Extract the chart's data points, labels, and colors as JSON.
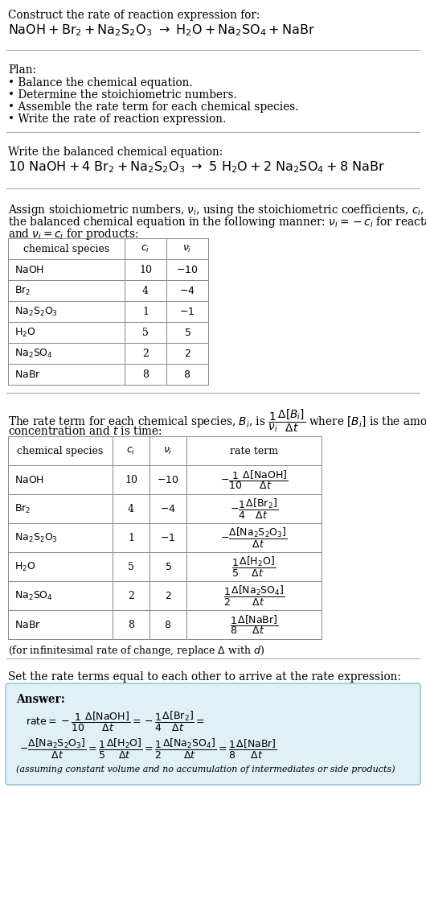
{
  "bg_color": "#ffffff",
  "text_color": "#000000",
  "title_line1": "Construct the rate of reaction expression for:",
  "plan_header": "Plan:",
  "plan_items": [
    "• Balance the chemical equation.",
    "• Determine the stoichiometric numbers.",
    "• Assemble the rate term for each chemical species.",
    "• Write the rate of reaction expression."
  ],
  "balanced_header": "Write the balanced chemical equation:",
  "table1_rows": [
    [
      "NaOH",
      "10",
      "−10"
    ],
    [
      "Br_2",
      "4",
      "−4"
    ],
    [
      "Na_2S_2O_3",
      "1",
      "−1"
    ],
    [
      "H_2O",
      "5",
      "5"
    ],
    [
      "Na_2SO_4",
      "2",
      "2"
    ],
    [
      "NaBr",
      "8",
      "8"
    ]
  ],
  "table2_rows": [
    [
      "NaOH",
      "10",
      "−10"
    ],
    [
      "Br_2",
      "4",
      "−4"
    ],
    [
      "Na_2S_2O_3",
      "1",
      "−1"
    ],
    [
      "H_2O",
      "5",
      "5"
    ],
    [
      "Na_2SO_4",
      "2",
      "2"
    ],
    [
      "NaBr",
      "8",
      "8"
    ]
  ],
  "infinitesimal_note": "(for infinitesimal rate of change, replace Δ with d)",
  "set_rate_text": "Set the rate terms equal to each other to arrive at the rate expression:",
  "answer_bg": "#dff0f7",
  "answer_border": "#8bbdd4",
  "answer_label": "Answer:",
  "assuming_note": "(assuming constant volume and no accumulation of intermediates or side products)"
}
